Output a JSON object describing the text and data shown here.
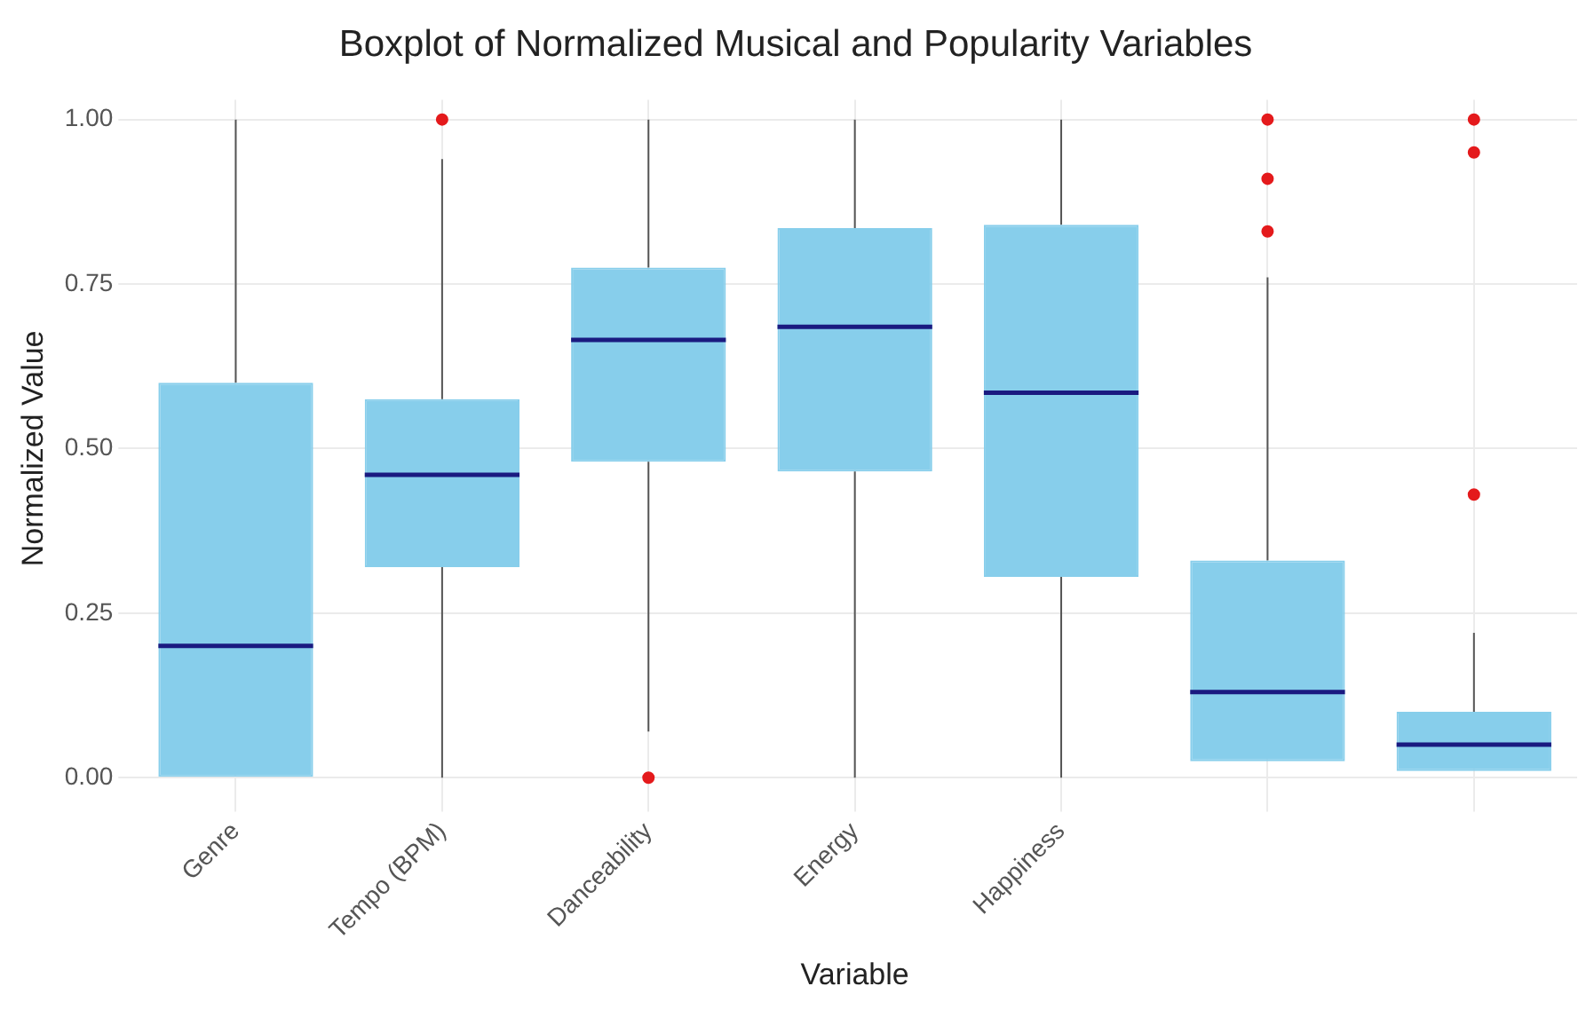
{
  "chart_data": {
    "type": "box",
    "title": "Boxplot of Normalized Musical and Popularity Variables",
    "xlabel": "Variable",
    "ylabel": "Normalized Value",
    "categories": [
      "Genre",
      "Tempo (BPM)",
      "Danceability",
      "Energy",
      "Happiness",
      null,
      null
    ],
    "series": [
      {
        "color": "#87ceeb",
        "boxes": [
          {
            "low": 0,
            "q1": 0,
            "median": 0.2,
            "q3": 0.6,
            "high": 1.0
          },
          {
            "low": 0,
            "q1": 0.32,
            "median": 0.46,
            "q3": 0.575,
            "high": 0.94,
            "outliers": [
              1.0
            ]
          },
          {
            "low": 0.07,
            "q1": 0.48,
            "median": 0.665,
            "q3": 0.775,
            "high": 1.0,
            "outliers": [
              0
            ]
          },
          {
            "low": 0,
            "q1": 0.465,
            "median": 0.685,
            "q3": 0.835,
            "high": 1.0
          },
          {
            "low": 0,
            "q1": 0.305,
            "median": 0.585,
            "q3": 0.84,
            "high": 1.0
          },
          {
            "low": 0.025,
            "q1": 0.025,
            "median": 0.13,
            "q3": 0.33,
            "high": 0.76,
            "outliers": [
              0.83,
              0.91,
              1.0
            ]
          },
          {
            "low": 0.01,
            "q1": 0.01,
            "median": 0.05,
            "q3": 0.1,
            "high": 0.22,
            "outliers": [
              0.43,
              0.95,
              1.0
            ]
          }
        ]
      }
    ],
    "ylim": [
      -0.03,
      1.03
    ],
    "yticks": [
      {
        "value": 0,
        "label": "0.00"
      },
      {
        "value": 0.25,
        "label": "0.25"
      },
      {
        "value": 0.5,
        "label": "0.50"
      },
      {
        "value": 0.75,
        "label": "0.75"
      },
      {
        "value": 1,
        "label": "1.00"
      }
    ],
    "grid": true,
    "legend": false
  }
}
